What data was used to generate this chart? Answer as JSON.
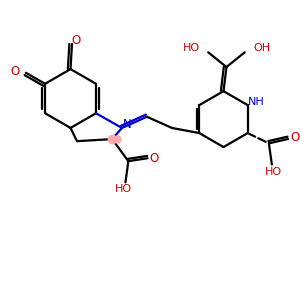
{
  "bg_color": "#ffffff",
  "bond_color": "#000000",
  "n_color": "#0000cc",
  "o_color": "#cc0000",
  "lw": 1.6,
  "fig_size": [
    3.0,
    3.0
  ],
  "dpi": 100,
  "xlim": [
    0,
    10
  ],
  "ylim": [
    0,
    10
  ]
}
